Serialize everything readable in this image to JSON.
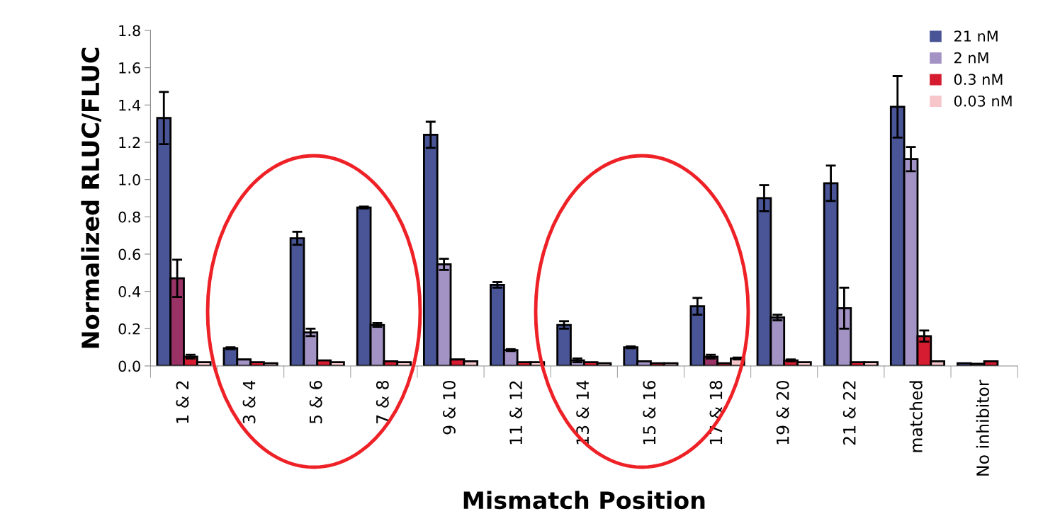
{
  "chart_data": {
    "type": "bar",
    "xlabel": "Mismatch Position",
    "ylabel": "Normalized RLUC/FLUC",
    "categories": [
      "1 & 2",
      "3 & 4",
      "5 & 6",
      "7 & 8",
      "9 & 10",
      "11 & 12",
      "13 & 14",
      "15 & 16",
      "17 & 18",
      "19 & 20",
      "21 & 22",
      "matched",
      "No inhibitor"
    ],
    "series": [
      {
        "name": "21 nM",
        "color": "#4a5597",
        "values": [
          1.33,
          0.095,
          0.685,
          0.85,
          1.24,
          0.435,
          0.22,
          0.1,
          0.32,
          0.9,
          0.98,
          1.39,
          0.015
        ],
        "errors": [
          0.14,
          0.005,
          0.035,
          0.005,
          0.07,
          0.015,
          0.02,
          0.005,
          0.045,
          0.07,
          0.095,
          0.165,
          null
        ]
      },
      {
        "name": "2 nM",
        "color": "#a393c5",
        "colors": [
          "#993366",
          "#a393c5",
          "#a393c5",
          "#a393c5",
          "#a393c5",
          "#a393c5",
          "#a393c5",
          "#a393c5",
          "#993366",
          "#a393c5",
          "#a393c5",
          "#a393c5",
          "#a393c5"
        ],
        "values": [
          0.47,
          0.035,
          0.18,
          0.22,
          0.545,
          0.085,
          0.03,
          0.025,
          0.05,
          0.26,
          0.31,
          1.11,
          0.012
        ],
        "errors": [
          0.1,
          null,
          0.02,
          0.01,
          0.03,
          0.005,
          0.01,
          null,
          0.01,
          0.015,
          0.11,
          0.065,
          null
        ]
      },
      {
        "name": "0.3 nM",
        "color": "#d51c30",
        "values": [
          0.05,
          0.02,
          0.03,
          0.025,
          0.035,
          0.02,
          0.02,
          0.015,
          0.015,
          0.03,
          0.02,
          0.16,
          0.025
        ],
        "errors": [
          0.01,
          null,
          null,
          null,
          null,
          null,
          null,
          null,
          null,
          0.005,
          null,
          0.03,
          null
        ]
      },
      {
        "name": "0.03 nM",
        "color": "#f7c6ca",
        "values": [
          0.02,
          0.015,
          0.02,
          0.02,
          0.025,
          0.02,
          0.015,
          0.015,
          0.04,
          0.02,
          0.02,
          0.025,
          null
        ],
        "errors": [
          null,
          null,
          null,
          null,
          null,
          null,
          null,
          null,
          0.005,
          null,
          null,
          null,
          null
        ]
      }
    ],
    "ylim": [
      0,
      1.8
    ],
    "yticks": [
      {
        "value": 0,
        "label": "0.0"
      },
      {
        "value": 0.2,
        "label": "0.2"
      },
      {
        "value": 0.4,
        "label": "0.4"
      },
      {
        "value": 0.6,
        "label": "0.6"
      },
      {
        "value": 0.8,
        "label": "0.8"
      },
      {
        "value": 1.0,
        "label": "1.0"
      },
      {
        "value": 1.2,
        "label": "1.2"
      },
      {
        "value": 1.4,
        "label": "1.4"
      },
      {
        "value": 1.6,
        "label": "1.6"
      },
      {
        "value": 1.8,
        "label": "1.8"
      }
    ],
    "legend": "top right",
    "grid": false
  }
}
